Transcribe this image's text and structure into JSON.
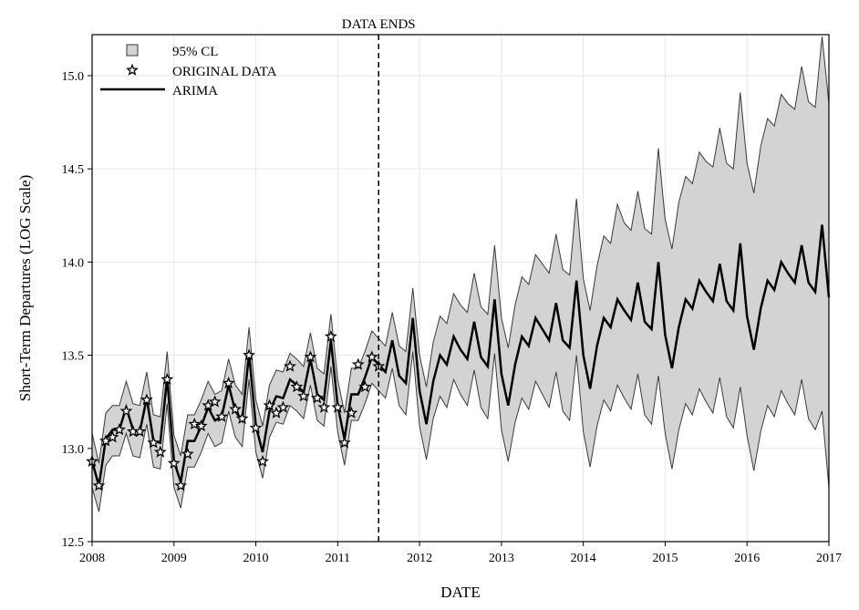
{
  "chart_data": {
    "type": "line",
    "xlabel": "DATE",
    "ylabel": "Short-Term Departures (LOG Scale)",
    "xlim": [
      2008,
      2017
    ],
    "ylim": [
      12.5,
      15.22
    ],
    "xticks": [
      2008,
      2009,
      2010,
      2011,
      2012,
      2013,
      2014,
      2015,
      2016,
      2017
    ],
    "xtick_labels": [
      "2008",
      "2009",
      "2010",
      "2011",
      "2012",
      "2013",
      "2014",
      "2015",
      "2016",
      "2017"
    ],
    "yticks": [
      12.5,
      13.0,
      13.5,
      14.0,
      14.5,
      15.0
    ],
    "ytick_labels": [
      "12.5",
      "13.0",
      "13.5",
      "14.0",
      "14.5",
      "15.0"
    ],
    "grid": true,
    "legend_position": "top-left",
    "legend": {
      "band": "95% CL",
      "original": "ORIGINAL DATA",
      "arima": "ARIMA"
    },
    "annotation": {
      "text": "DATA ENDS",
      "x": 2011.5
    },
    "series_meta": {
      "band_fill": "#d3d3d3",
      "band_edge": "#3a3a3a",
      "line_color": "#000000"
    },
    "original_data": [
      {
        "x": 2008.0,
        "y": 12.93
      },
      {
        "x": 2008.083,
        "y": 12.8
      },
      {
        "x": 2008.167,
        "y": 13.04
      },
      {
        "x": 2008.25,
        "y": 13.06
      },
      {
        "x": 2008.333,
        "y": 13.1
      },
      {
        "x": 2008.417,
        "y": 13.2
      },
      {
        "x": 2008.5,
        "y": 13.09
      },
      {
        "x": 2008.583,
        "y": 13.09
      },
      {
        "x": 2008.667,
        "y": 13.26
      },
      {
        "x": 2008.75,
        "y": 13.03
      },
      {
        "x": 2008.833,
        "y": 12.98
      },
      {
        "x": 2008.917,
        "y": 13.37
      },
      {
        "x": 2009.0,
        "y": 12.92
      },
      {
        "x": 2009.083,
        "y": 12.8
      },
      {
        "x": 2009.167,
        "y": 12.97
      },
      {
        "x": 2009.25,
        "y": 13.13
      },
      {
        "x": 2009.333,
        "y": 13.12
      },
      {
        "x": 2009.417,
        "y": 13.23
      },
      {
        "x": 2009.5,
        "y": 13.25
      },
      {
        "x": 2009.583,
        "y": 13.17
      },
      {
        "x": 2009.667,
        "y": 13.35
      },
      {
        "x": 2009.75,
        "y": 13.21
      },
      {
        "x": 2009.833,
        "y": 13.16
      },
      {
        "x": 2009.917,
        "y": 13.5
      },
      {
        "x": 2010.0,
        "y": 13.11
      },
      {
        "x": 2010.083,
        "y": 12.93
      },
      {
        "x": 2010.167,
        "y": 13.23
      },
      {
        "x": 2010.25,
        "y": 13.19
      },
      {
        "x": 2010.333,
        "y": 13.22
      },
      {
        "x": 2010.417,
        "y": 13.44
      },
      {
        "x": 2010.5,
        "y": 13.33
      },
      {
        "x": 2010.583,
        "y": 13.28
      },
      {
        "x": 2010.667,
        "y": 13.49
      },
      {
        "x": 2010.75,
        "y": 13.27
      },
      {
        "x": 2010.833,
        "y": 13.22
      },
      {
        "x": 2010.917,
        "y": 13.6
      },
      {
        "x": 2011.0,
        "y": 13.22
      },
      {
        "x": 2011.083,
        "y": 13.03
      },
      {
        "x": 2011.167,
        "y": 13.19
      },
      {
        "x": 2011.25,
        "y": 13.45
      },
      {
        "x": 2011.333,
        "y": 13.33
      },
      {
        "x": 2011.417,
        "y": 13.49
      },
      {
        "x": 2011.5,
        "y": 13.44
      }
    ],
    "arima": [
      {
        "x": 2008.0,
        "y": 12.93,
        "lo": 12.79,
        "hi": 13.08
      },
      {
        "x": 2008.083,
        "y": 12.8,
        "lo": 12.66,
        "hi": 12.92
      },
      {
        "x": 2008.167,
        "y": 13.05,
        "lo": 12.91,
        "hi": 13.19
      },
      {
        "x": 2008.25,
        "y": 13.1,
        "lo": 12.96,
        "hi": 13.23
      },
      {
        "x": 2008.333,
        "y": 13.1,
        "lo": 12.96,
        "hi": 13.23
      },
      {
        "x": 2008.417,
        "y": 13.22,
        "lo": 13.08,
        "hi": 13.36
      },
      {
        "x": 2008.5,
        "y": 13.1,
        "lo": 12.96,
        "hi": 13.24
      },
      {
        "x": 2008.583,
        "y": 13.09,
        "lo": 12.95,
        "hi": 13.23
      },
      {
        "x": 2008.667,
        "y": 13.27,
        "lo": 13.13,
        "hi": 13.41
      },
      {
        "x": 2008.75,
        "y": 13.04,
        "lo": 12.9,
        "hi": 13.18
      },
      {
        "x": 2008.833,
        "y": 13.03,
        "lo": 12.89,
        "hi": 13.17
      },
      {
        "x": 2008.917,
        "y": 13.38,
        "lo": 13.24,
        "hi": 13.52
      },
      {
        "x": 2009.0,
        "y": 12.93,
        "lo": 12.79,
        "hi": 13.07
      },
      {
        "x": 2009.083,
        "y": 12.82,
        "lo": 12.68,
        "hi": 12.96
      },
      {
        "x": 2009.167,
        "y": 13.04,
        "lo": 12.9,
        "hi": 13.18
      },
      {
        "x": 2009.25,
        "y": 13.04,
        "lo": 12.9,
        "hi": 13.18
      },
      {
        "x": 2009.333,
        "y": 13.12,
        "lo": 12.98,
        "hi": 13.26
      },
      {
        "x": 2009.417,
        "y": 13.22,
        "lo": 13.08,
        "hi": 13.36
      },
      {
        "x": 2009.5,
        "y": 13.15,
        "lo": 13.01,
        "hi": 13.29
      },
      {
        "x": 2009.583,
        "y": 13.17,
        "lo": 13.03,
        "hi": 13.31
      },
      {
        "x": 2009.667,
        "y": 13.34,
        "lo": 13.2,
        "hi": 13.48
      },
      {
        "x": 2009.75,
        "y": 13.2,
        "lo": 13.06,
        "hi": 13.34
      },
      {
        "x": 2009.833,
        "y": 13.15,
        "lo": 13.01,
        "hi": 13.29
      },
      {
        "x": 2009.917,
        "y": 13.51,
        "lo": 13.37,
        "hi": 13.65
      },
      {
        "x": 2010.0,
        "y": 13.12,
        "lo": 12.98,
        "hi": 13.26
      },
      {
        "x": 2010.083,
        "y": 12.98,
        "lo": 12.84,
        "hi": 13.12
      },
      {
        "x": 2010.167,
        "y": 13.2,
        "lo": 13.06,
        "hi": 13.34
      },
      {
        "x": 2010.25,
        "y": 13.28,
        "lo": 13.14,
        "hi": 13.42
      },
      {
        "x": 2010.333,
        "y": 13.27,
        "lo": 13.13,
        "hi": 13.41
      },
      {
        "x": 2010.417,
        "y": 13.37,
        "lo": 13.23,
        "hi": 13.51
      },
      {
        "x": 2010.5,
        "y": 13.34,
        "lo": 13.2,
        "hi": 13.48
      },
      {
        "x": 2010.583,
        "y": 13.3,
        "lo": 13.16,
        "hi": 13.44
      },
      {
        "x": 2010.667,
        "y": 13.48,
        "lo": 13.34,
        "hi": 13.62
      },
      {
        "x": 2010.75,
        "y": 13.29,
        "lo": 13.15,
        "hi": 13.43
      },
      {
        "x": 2010.833,
        "y": 13.26,
        "lo": 13.12,
        "hi": 13.4
      },
      {
        "x": 2010.917,
        "y": 13.58,
        "lo": 13.44,
        "hi": 13.72
      },
      {
        "x": 2011.0,
        "y": 13.23,
        "lo": 13.09,
        "hi": 13.37
      },
      {
        "x": 2011.083,
        "y": 13.05,
        "lo": 12.91,
        "hi": 13.19
      },
      {
        "x": 2011.167,
        "y": 13.29,
        "lo": 13.15,
        "hi": 13.43
      },
      {
        "x": 2011.25,
        "y": 13.29,
        "lo": 13.15,
        "hi": 13.43
      },
      {
        "x": 2011.333,
        "y": 13.38,
        "lo": 13.24,
        "hi": 13.52
      },
      {
        "x": 2011.417,
        "y": 13.49,
        "lo": 13.35,
        "hi": 13.63
      },
      {
        "x": 2011.5,
        "y": 13.45,
        "lo": 13.31,
        "hi": 13.59
      },
      {
        "x": 2011.583,
        "y": 13.41,
        "lo": 13.27,
        "hi": 13.55
      },
      {
        "x": 2011.667,
        "y": 13.58,
        "lo": 13.43,
        "hi": 13.73
      },
      {
        "x": 2011.75,
        "y": 13.39,
        "lo": 13.23,
        "hi": 13.55
      },
      {
        "x": 2011.833,
        "y": 13.35,
        "lo": 13.18,
        "hi": 13.52
      },
      {
        "x": 2011.917,
        "y": 13.7,
        "lo": 13.52,
        "hi": 13.86
      },
      {
        "x": 2012.0,
        "y": 13.31,
        "lo": 13.12,
        "hi": 13.5
      },
      {
        "x": 2012.083,
        "y": 13.13,
        "lo": 12.94,
        "hi": 13.33
      },
      {
        "x": 2012.167,
        "y": 13.36,
        "lo": 13.16,
        "hi": 13.57
      },
      {
        "x": 2012.25,
        "y": 13.5,
        "lo": 13.28,
        "hi": 13.71
      },
      {
        "x": 2012.333,
        "y": 13.45,
        "lo": 13.22,
        "hi": 13.67
      },
      {
        "x": 2012.417,
        "y": 13.6,
        "lo": 13.37,
        "hi": 13.83
      },
      {
        "x": 2012.5,
        "y": 13.53,
        "lo": 13.29,
        "hi": 13.77
      },
      {
        "x": 2012.583,
        "y": 13.48,
        "lo": 13.23,
        "hi": 13.73
      },
      {
        "x": 2012.667,
        "y": 13.68,
        "lo": 13.42,
        "hi": 13.94
      },
      {
        "x": 2012.75,
        "y": 13.49,
        "lo": 13.22,
        "hi": 13.76
      },
      {
        "x": 2012.833,
        "y": 13.44,
        "lo": 13.16,
        "hi": 13.72
      },
      {
        "x": 2012.917,
        "y": 13.8,
        "lo": 13.51,
        "hi": 14.09
      },
      {
        "x": 2013.0,
        "y": 13.4,
        "lo": 13.1,
        "hi": 13.7
      },
      {
        "x": 2013.083,
        "y": 13.23,
        "lo": 12.93,
        "hi": 13.54
      },
      {
        "x": 2013.167,
        "y": 13.45,
        "lo": 13.14,
        "hi": 13.77
      },
      {
        "x": 2013.25,
        "y": 13.6,
        "lo": 13.27,
        "hi": 13.92
      },
      {
        "x": 2013.333,
        "y": 13.55,
        "lo": 13.21,
        "hi": 13.88
      },
      {
        "x": 2013.417,
        "y": 13.7,
        "lo": 13.36,
        "hi": 14.04
      },
      {
        "x": 2013.5,
        "y": 13.64,
        "lo": 13.29,
        "hi": 13.99
      },
      {
        "x": 2013.583,
        "y": 13.58,
        "lo": 13.22,
        "hi": 13.94
      },
      {
        "x": 2013.667,
        "y": 13.78,
        "lo": 13.41,
        "hi": 14.15
      },
      {
        "x": 2013.75,
        "y": 13.58,
        "lo": 13.2,
        "hi": 13.96
      },
      {
        "x": 2013.833,
        "y": 13.54,
        "lo": 13.15,
        "hi": 13.93
      },
      {
        "x": 2013.917,
        "y": 13.9,
        "lo": 13.5,
        "hi": 14.34
      },
      {
        "x": 2014.0,
        "y": 13.5,
        "lo": 13.09,
        "hi": 13.91
      },
      {
        "x": 2014.083,
        "y": 13.32,
        "lo": 12.9,
        "hi": 13.74
      },
      {
        "x": 2014.167,
        "y": 13.55,
        "lo": 13.12,
        "hi": 13.98
      },
      {
        "x": 2014.25,
        "y": 13.7,
        "lo": 13.26,
        "hi": 14.14
      },
      {
        "x": 2014.333,
        "y": 13.65,
        "lo": 13.2,
        "hi": 14.1
      },
      {
        "x": 2014.417,
        "y": 13.8,
        "lo": 13.34,
        "hi": 14.31
      },
      {
        "x": 2014.5,
        "y": 13.74,
        "lo": 13.27,
        "hi": 14.21
      },
      {
        "x": 2014.583,
        "y": 13.69,
        "lo": 13.21,
        "hi": 14.17
      },
      {
        "x": 2014.667,
        "y": 13.89,
        "lo": 13.4,
        "hi": 14.38
      },
      {
        "x": 2014.75,
        "y": 13.68,
        "lo": 13.18,
        "hi": 14.18
      },
      {
        "x": 2014.833,
        "y": 13.64,
        "lo": 13.13,
        "hi": 14.15
      },
      {
        "x": 2014.917,
        "y": 14.0,
        "lo": 13.39,
        "hi": 14.61
      },
      {
        "x": 2015.0,
        "y": 13.61,
        "lo": 13.08,
        "hi": 14.23
      },
      {
        "x": 2015.083,
        "y": 13.43,
        "lo": 12.89,
        "hi": 14.07
      },
      {
        "x": 2015.167,
        "y": 13.65,
        "lo": 13.1,
        "hi": 14.32
      },
      {
        "x": 2015.25,
        "y": 13.8,
        "lo": 13.24,
        "hi": 14.46
      },
      {
        "x": 2015.333,
        "y": 13.75,
        "lo": 13.18,
        "hi": 14.42
      },
      {
        "x": 2015.417,
        "y": 13.9,
        "lo": 13.32,
        "hi": 14.59
      },
      {
        "x": 2015.5,
        "y": 13.84,
        "lo": 13.25,
        "hi": 14.54
      },
      {
        "x": 2015.583,
        "y": 13.79,
        "lo": 13.19,
        "hi": 14.51
      },
      {
        "x": 2015.667,
        "y": 13.99,
        "lo": 13.38,
        "hi": 14.72
      },
      {
        "x": 2015.75,
        "y": 13.79,
        "lo": 13.17,
        "hi": 14.53
      },
      {
        "x": 2015.833,
        "y": 13.74,
        "lo": 13.11,
        "hi": 14.5
      },
      {
        "x": 2015.917,
        "y": 14.1,
        "lo": 13.33,
        "hi": 14.91
      },
      {
        "x": 2016.0,
        "y": 13.71,
        "lo": 13.07,
        "hi": 14.53
      },
      {
        "x": 2016.083,
        "y": 13.53,
        "lo": 12.88,
        "hi": 14.37
      },
      {
        "x": 2016.167,
        "y": 13.75,
        "lo": 13.09,
        "hi": 14.62
      },
      {
        "x": 2016.25,
        "y": 13.9,
        "lo": 13.23,
        "hi": 14.77
      },
      {
        "x": 2016.333,
        "y": 13.85,
        "lo": 13.17,
        "hi": 14.73
      },
      {
        "x": 2016.417,
        "y": 14.0,
        "lo": 13.31,
        "hi": 14.9
      },
      {
        "x": 2016.5,
        "y": 13.94,
        "lo": 13.24,
        "hi": 14.85
      },
      {
        "x": 2016.583,
        "y": 13.89,
        "lo": 13.18,
        "hi": 14.82
      },
      {
        "x": 2016.667,
        "y": 14.09,
        "lo": 13.37,
        "hi": 15.05
      },
      {
        "x": 2016.75,
        "y": 13.89,
        "lo": 13.16,
        "hi": 14.86
      },
      {
        "x": 2016.833,
        "y": 13.84,
        "lo": 13.1,
        "hi": 14.83
      },
      {
        "x": 2016.917,
        "y": 14.2,
        "lo": 13.2,
        "hi": 15.21
      },
      {
        "x": 2017.0,
        "y": 13.81,
        "lo": 12.79,
        "hi": 14.85
      }
    ]
  }
}
